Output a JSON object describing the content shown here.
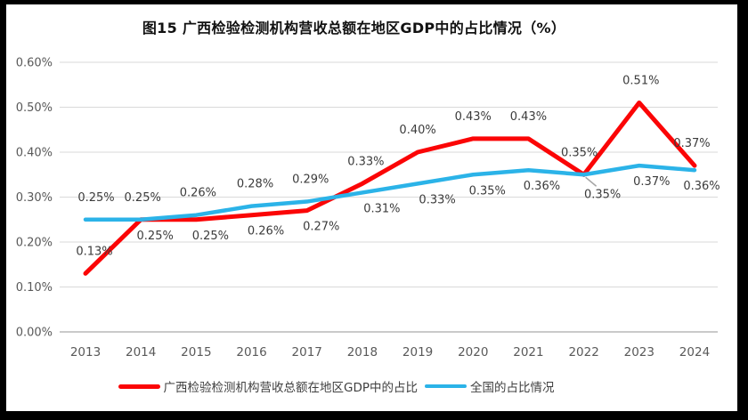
{
  "chart_data": {
    "type": "line",
    "title": "图15 广西检验检测机构营收总额在地区GDP中的占比情况（%）",
    "categories": [
      "2013",
      "2014",
      "2015",
      "2016",
      "2017",
      "2018",
      "2019",
      "2020",
      "2021",
      "2022",
      "2023",
      "2024"
    ],
    "series": [
      {
        "name": "广西检验检测机构营收总额在地区GDP中的占比",
        "color": "#fb0506",
        "values": [
          0.13,
          0.25,
          0.25,
          0.26,
          0.27,
          0.33,
          0.4,
          0.43,
          0.43,
          0.35,
          0.51,
          0.37
        ],
        "labels": [
          "0.13%",
          "0.25%",
          "0.25%",
          "0.26%",
          "0.27%",
          "0.33%",
          "0.40%",
          "0.43%",
          "0.43%",
          "0.35%",
          "0.51%",
          "0.37%"
        ]
      },
      {
        "name": "全国的占比情况",
        "color": "#2bb3e8",
        "values": [
          0.25,
          0.25,
          0.26,
          0.28,
          0.29,
          0.31,
          0.33,
          0.35,
          0.36,
          0.35,
          0.37,
          0.36
        ],
        "labels": [
          "0.25%",
          "0.25%",
          "0.26%",
          "0.28%",
          "0.29%",
          "0.31%",
          "0.33%",
          "0.35%",
          "0.36%",
          "0.35%",
          "0.37%",
          "0.36%"
        ]
      }
    ],
    "y_axis": {
      "min": 0,
      "max": 0.6,
      "tick_values": [
        0,
        0.1,
        0.2,
        0.3,
        0.4,
        0.5,
        0.6
      ],
      "ticks": [
        "0.00%",
        "0.10%",
        "0.20%",
        "0.30%",
        "0.40%",
        "0.50%",
        "0.60%"
      ]
    },
    "grid": true,
    "legend_position": "bottom",
    "data_labels": true,
    "annotations": {
      "leader_line": {
        "category": "2022",
        "series_index": 0,
        "color": "#a6a6a6"
      }
    },
    "colors": {
      "grid": "#d9d9d9",
      "axis": "#c3c3c3",
      "tick_text": "#595959",
      "label_text": "#3b3b3b",
      "frame": "#000000",
      "background": "#ffffff"
    }
  }
}
